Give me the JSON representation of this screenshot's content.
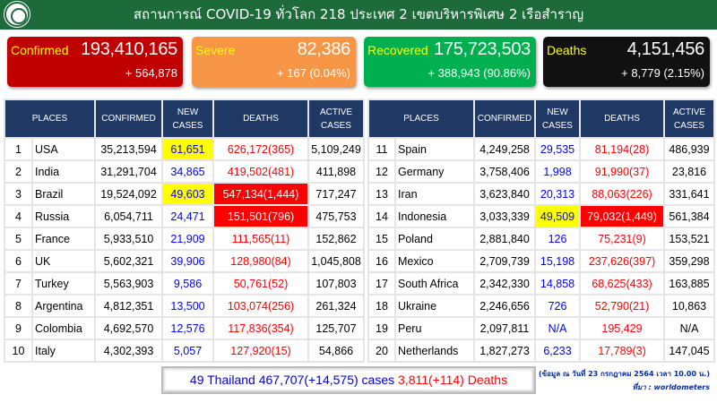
{
  "header": {
    "title": "สถานการณ์ COVID-19 ทั่วโลก 218 ประเทศ 2 เขตบริหารพิเศษ 2 เรือสำราญ"
  },
  "cards": [
    {
      "label": "Confirmed",
      "value": "193,410,165",
      "change": "+ 564,878",
      "color": "#c00000"
    },
    {
      "label": "Severe",
      "value": "82,386",
      "change": "+ 167 (0.04%)",
      "color": "#f79646"
    },
    {
      "label": "Recovered",
      "value": "175,723,503",
      "change": "+ 388,943 (90.86%)",
      "color": "#00b050"
    },
    {
      "label": "Deaths",
      "value": "4,151,456",
      "change": "+ 8,779 (2.15%)",
      "color": "#111111"
    }
  ],
  "columns": [
    "PLACES",
    "CONFIRMED",
    "NEW CASES",
    "DEATHS",
    "ACTIVE CASES"
  ],
  "rows": [
    [
      "1",
      "USA",
      "35,213,594",
      "61,651",
      "626,172(365)",
      "5,109,249",
      "y",
      ""
    ],
    [
      "2",
      "India",
      "31,291,704",
      "34,865",
      "419,502(481)",
      "411,898",
      "",
      ""
    ],
    [
      "3",
      "Brazil",
      "19,524,092",
      "49,603",
      "547,134(1,444)",
      "717,247",
      "y",
      "r"
    ],
    [
      "4",
      "Russia",
      "6,054,711",
      "24,471",
      "151,501(796)",
      "475,753",
      "",
      "r"
    ],
    [
      "5",
      "France",
      "5,933,510",
      "21,909",
      "111,565(11)",
      "152,862",
      "",
      ""
    ],
    [
      "6",
      "UK",
      "5,602,321",
      "39,906",
      "128,980(84)",
      "1,045,808",
      "",
      ""
    ],
    [
      "7",
      "Turkey",
      "5,563,903",
      "9,586",
      "50,761(52)",
      "107,803",
      "",
      ""
    ],
    [
      "8",
      "Argentina",
      "4,812,351",
      "13,500",
      "103,074(256)",
      "261,324",
      "",
      ""
    ],
    [
      "9",
      "Colombia",
      "4,692,570",
      "12,576",
      "117,836(354)",
      "125,707",
      "",
      ""
    ],
    [
      "10",
      "Italy",
      "4,302,393",
      "5,057",
      "127,920(15)",
      "54,866",
      "",
      ""
    ],
    [
      "11",
      "Spain",
      "4,249,258",
      "29,535",
      "81,194(28)",
      "486,939",
      "",
      ""
    ],
    [
      "12",
      "Germany",
      "3,758,406",
      "1,998",
      "91,990(37)",
      "23,816",
      "",
      ""
    ],
    [
      "13",
      "Iran",
      "3,623,840",
      "20,313",
      "88,063(226)",
      "331,641",
      "",
      ""
    ],
    [
      "14",
      "Indonesia",
      "3,033,339",
      "49,509",
      "79,032(1,449)",
      "561,384",
      "y",
      "r"
    ],
    [
      "15",
      "Poland",
      "2,881,840",
      "126",
      "75,231(9)",
      "153,521",
      "",
      ""
    ],
    [
      "16",
      "Mexico",
      "2,709,739",
      "15,198",
      "237,626(397)",
      "359,298",
      "",
      ""
    ],
    [
      "17",
      "South Africa",
      "2,342,330",
      "14,858",
      "68,625(433)",
      "163,885",
      "",
      ""
    ],
    [
      "18",
      "Ukraine",
      "2,246,656",
      "726",
      "52,790(21)",
      "10,863",
      "",
      ""
    ],
    [
      "19",
      "Peru",
      "2,097,811",
      "N/A",
      "195,429",
      "N/A",
      "",
      ""
    ],
    [
      "20",
      "Netherlands",
      "1,827,273",
      "6,233",
      "17,789(3)",
      "147,045",
      "",
      ""
    ]
  ],
  "thailand": {
    "cases": "49 Thailand 467,707(+14,575) cases",
    "deaths": "3,811(+114) Deaths"
  },
  "note": {
    "date": "(ข้อมูล ณ วันที่ 23 กรกฎาคม 2564 เวลา 10.00 น.)",
    "source": "ที่มา : worldometers"
  }
}
